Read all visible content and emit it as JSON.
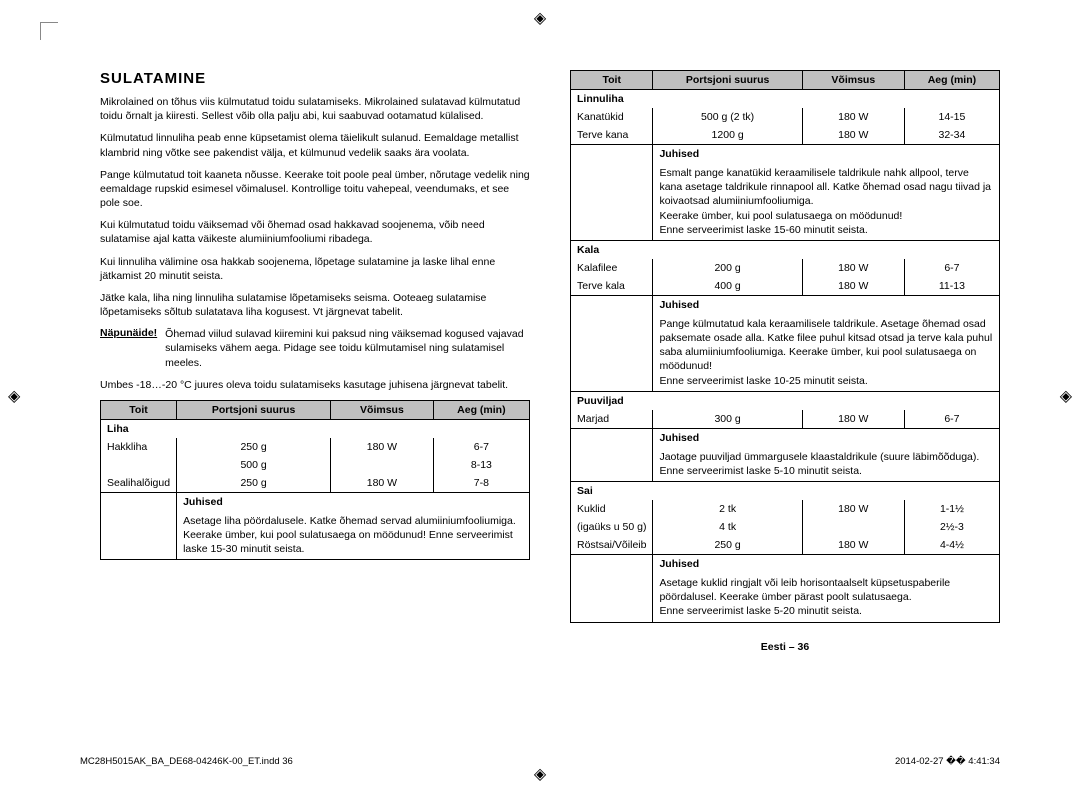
{
  "heading": "SULATAMINE",
  "paras": [
    "Mikrolained on tõhus viis külmutatud toidu sulatamiseks. Mikrolained sulatavad külmutatud toidu õrnalt ja kiiresti. Sellest võib olla palju abi, kui saabuvad ootamatud külalised.",
    "Külmutatud linnuliha peab enne küpsetamist olema täielikult sulanud. Eemaldage metallist klambrid ning võtke see pakendist välja, et külmunud vedelik saaks ära voolata.",
    "Pange külmutatud toit kaaneta nõusse. Keerake toit poole peal ümber, nõrutage vedelik ning eemaldage rupskid esimesel võimalusel. Kontrollige toitu vahepeal, veendumaks, et see pole soe.",
    "Kui külmutatud toidu väiksemad või õhemad osad hakkavad soojenema, võib need sulatamise ajal katta väikeste alumiiniumfooliumi ribadega.",
    "Kui linnuliha välimine osa hakkab soojenema, lõpetage sulatamine ja laske lihal enne jätkamist 20 minutit seista.",
    "Jätke kala, liha ning linnuliha sulatamise lõpetamiseks seisma. Ooteaeg sulatamise lõpetamiseks sõltub sulatatava liha kogusest. Vt järgnevat tabelit."
  ],
  "tip": {
    "label": "Näpunäide!",
    "body": "Õhemad viilud sulavad kiiremini kui paksud ning väiksemad kogused vajavad sulamiseks vähem aega. Pidage see toidu külmutamisel ning sulatamisel meeles."
  },
  "after_tip": "Umbes -18…-20 °C juures oleva toidu sulatamiseks kasutage juhisena järgnevat tabelit.",
  "headers": {
    "food": "Toit",
    "portion": "Portsjoni suurus",
    "power": "Võimsus",
    "time": "Aeg (min)"
  },
  "juh_label": "Juhised",
  "t1": {
    "cat": "Liha",
    "rows": [
      {
        "food": "Hakkliha",
        "portion1": "250 g",
        "portion2": "500 g",
        "power": "180 W",
        "time1": "6-7",
        "time2": "8-13"
      },
      {
        "food": "Sealihalõigud",
        "portion": "250 g",
        "power": "180 W",
        "time": "7-8"
      }
    ],
    "juh": "Asetage liha pöördalusele. Katke õhemad servad alumiiniumfooliumiga. Keerake ümber, kui pool sulatusaega on möödunud! Enne serveerimist laske 15-30 minutit seista."
  },
  "t2": {
    "linnuliha": {
      "cat": "Linnuliha",
      "rows": [
        {
          "food": "Kanatükid",
          "portion": "500 g (2 tk)",
          "power": "180 W",
          "time": "14-15"
        },
        {
          "food": "Terve kana",
          "portion": "1200 g",
          "power": "180 W",
          "time": "32-34"
        }
      ],
      "juh": "Esmalt pange kanatükid keraamilisele taldrikule nahk allpool, terve kana asetage taldrikule rinnapool all. Katke õhemad osad nagu tiivad ja koivaotsad alumiiniumfooliumiga.\nKeerake ümber, kui pool sulatusaega on möödunud!\nEnne serveerimist laske 15-60 minutit seista."
    },
    "kala": {
      "cat": "Kala",
      "rows": [
        {
          "food": "Kalafilee",
          "portion": "200 g",
          "power": "180 W",
          "time": "6-7"
        },
        {
          "food": "Terve kala",
          "portion": "400 g",
          "power": "180 W",
          "time": "11-13"
        }
      ],
      "juh": "Pange külmutatud kala keraamilisele taldrikule. Asetage õhemad osad paksemate osade alla. Katke filee puhul kitsad otsad ja terve kala puhul saba alumiiniumfooliumiga. Keerake ümber, kui pool sulatusaega on möödunud!\nEnne serveerimist laske 10-25 minutit seista."
    },
    "puuviljad": {
      "cat": "Puuviljad",
      "rows": [
        {
          "food": "Marjad",
          "portion": "300 g",
          "power": "180 W",
          "time": "6-7"
        }
      ],
      "juh": "Jaotage puuviljad ümmargusele klaastaldrikule (suure läbimõõduga). Enne serveerimist laske 5-10 minutit seista."
    },
    "sai": {
      "cat": "Sai",
      "rows": [
        {
          "food": "Kuklid",
          "sub": "(igaüks u 50 g)",
          "portion1": "2 tk",
          "portion2": "4 tk",
          "power": "180 W",
          "time1": "1-1½",
          "time2": "2½-3"
        },
        {
          "food": "Röstsai/Võileib",
          "portion": "250 g",
          "power": "180 W",
          "time": "4-4½"
        }
      ],
      "juh": "Asetage kuklid ringjalt või leib horisontaalselt küpsetuspaberile pöördalusel. Keerake ümber pärast poolt sulatusaega.\nEnne serveerimist laske 5-20 minutit seista."
    }
  },
  "page_label": "Eesti – 36",
  "footer": {
    "left": "MC28H5015AK_BA_DE68-04246K-00_ET.indd   36",
    "right": "2014-02-27   �� 4:41:34"
  }
}
